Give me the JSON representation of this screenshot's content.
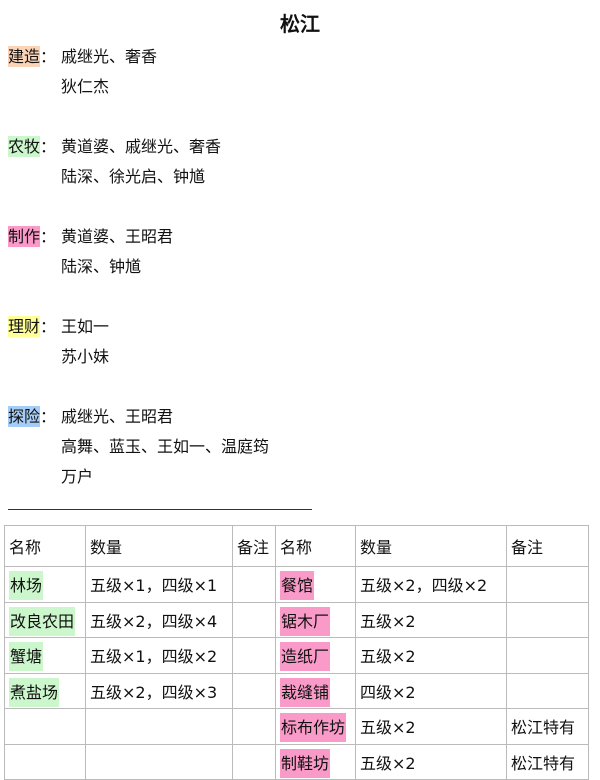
{
  "title": "松江",
  "colors": {
    "建造": "#fbd3b6",
    "农牧": "#ccf7cc",
    "制作": "#f99ac8",
    "理财": "#ffff99",
    "探险": "#a6cdf7"
  },
  "sections": [
    {
      "label": "建造",
      "lines": [
        "戚继光、奢香",
        "狄仁杰"
      ]
    },
    {
      "label": "农牧",
      "lines": [
        "黄道婆、戚继光、奢香",
        "陆深、徐光启、钟馗"
      ]
    },
    {
      "label": "制作",
      "lines": [
        "黄道婆、王昭君",
        "陆深、钟馗"
      ]
    },
    {
      "label": "理财",
      "lines": [
        "王如一",
        "苏小妹"
      ]
    },
    {
      "label": "探险",
      "lines": [
        "戚继光、王昭君",
        "高舞、蓝玉、王如一、温庭筠",
        "万户"
      ]
    }
  ],
  "table": {
    "headers": [
      "名称",
      "数量",
      "备注",
      "名称",
      "数量",
      "备注"
    ],
    "rows": [
      [
        "林场",
        "五级×1，四级×1",
        "",
        "餐馆",
        "五级×2，四级×2",
        ""
      ],
      [
        "改良农田",
        "五级×2，四级×4",
        "",
        "锯木厂",
        "五级×2",
        ""
      ],
      [
        "蟹塘",
        "五级×1，四级×2",
        "",
        "造纸厂",
        "五级×2",
        ""
      ],
      [
        "煮盐场",
        "五级×2，四级×3",
        "",
        "裁缝铺",
        "四级×2",
        ""
      ],
      [
        "",
        "",
        "",
        "标布作坊",
        "五级×2",
        "松江特有"
      ],
      [
        "",
        "",
        "",
        "制鞋坊",
        "五级×2",
        "松江特有"
      ]
    ]
  }
}
